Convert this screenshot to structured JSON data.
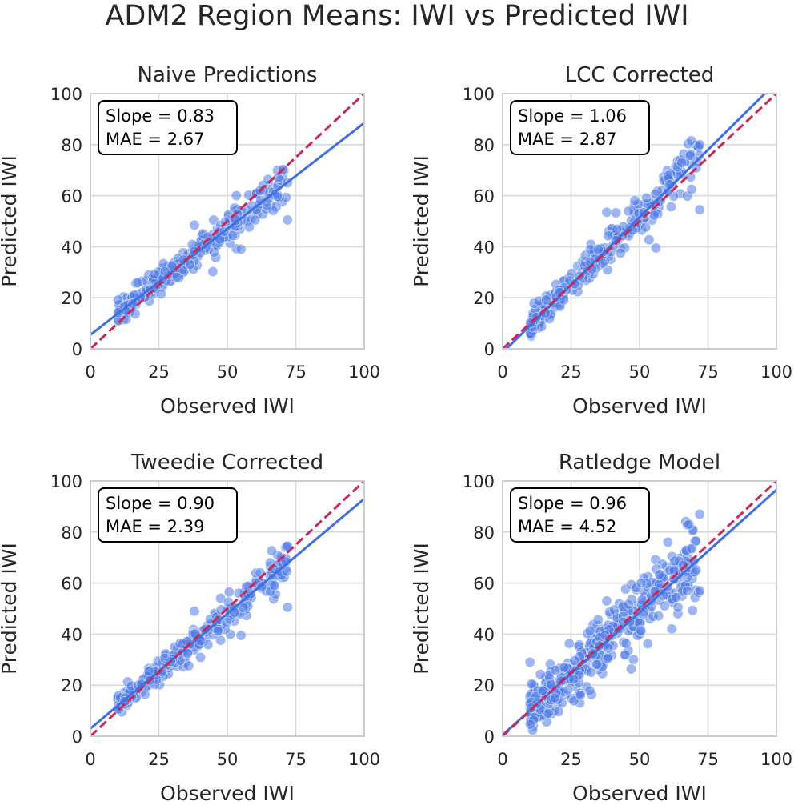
{
  "figure_title": "ADM2 Region Means: IWI vs Predicted IWI",
  "colors": {
    "points": "#4f7be8",
    "fit_line": "#4070e0",
    "identity_line": "#c8285a",
    "grid": "#d9d9d9",
    "frame": "#cccccc"
  },
  "chart_data": [
    {
      "type": "scatter",
      "title": "Naive Predictions",
      "xlabel": "Observed IWI",
      "ylabel": "Predicted IWI",
      "xlim": [
        0,
        100
      ],
      "ylim": [
        0,
        100
      ],
      "xticks": [
        "0",
        "25",
        "50",
        "75",
        "100"
      ],
      "yticks": [
        "0",
        "20",
        "40",
        "60",
        "80",
        "100"
      ],
      "slope_text": "Slope = 0.83",
      "mae_text": "MAE = 2.67",
      "slope": 0.83,
      "intercept": 5.5,
      "noise": 2.6,
      "n_points": 260,
      "seed": 11,
      "outliers": [
        [
          72,
          50.5
        ],
        [
          38,
          48.5
        ],
        [
          55,
          39
        ],
        [
          65,
          59
        ],
        [
          62,
          62
        ]
      ]
    },
    {
      "type": "scatter",
      "title": "LCC Corrected",
      "xlabel": "Observed IWI",
      "ylabel": "Predicted IWI",
      "xlim": [
        0,
        100
      ],
      "ylim": [
        0,
        100
      ],
      "xticks": [
        "0",
        "25",
        "50",
        "75",
        "100"
      ],
      "yticks": [
        "0",
        "20",
        "40",
        "60",
        "80",
        "100"
      ],
      "slope_text": "Slope = 1.06",
      "mae_text": "MAE = 2.87",
      "slope": 1.06,
      "intercept": -1.5,
      "noise": 3.1,
      "n_points": 260,
      "seed": 23,
      "outliers": [
        [
          72,
          54.5
        ],
        [
          72,
          80
        ],
        [
          69,
          62.5
        ],
        [
          38,
          53.5
        ],
        [
          56,
          39.5
        ],
        [
          43,
          37.5
        ]
      ]
    },
    {
      "type": "scatter",
      "title": "Tweedie Corrected",
      "xlabel": "Observed IWI",
      "ylabel": "Predicted IWI",
      "xlim": [
        0,
        100
      ],
      "ylim": [
        0,
        100
      ],
      "xticks": [
        "0",
        "25",
        "50",
        "75",
        "100"
      ],
      "yticks": [
        "0",
        "20",
        "40",
        "60",
        "80",
        "100"
      ],
      "slope_text": "Slope = 0.90",
      "mae_text": "MAE = 2.39",
      "slope": 0.9,
      "intercept": 3.0,
      "noise": 2.5,
      "n_points": 260,
      "seed": 37,
      "outliers": [
        [
          72,
          50.5
        ],
        [
          38,
          49
        ],
        [
          55,
          39.5
        ],
        [
          72,
          74.5
        ],
        [
          62,
          64
        ]
      ]
    },
    {
      "type": "scatter",
      "title": "Ratledge Model",
      "xlabel": "Observed IWI",
      "ylabel": "Predicted IWI",
      "xlim": [
        0,
        100
      ],
      "ylim": [
        0,
        100
      ],
      "xticks": [
        "0",
        "25",
        "50",
        "75",
        "100"
      ],
      "yticks": [
        "0",
        "20",
        "40",
        "60",
        "80",
        "100"
      ],
      "slope_text": "Slope = 0.96",
      "mae_text": "MAE = 4.52",
      "slope": 0.96,
      "intercept": 0.5,
      "noise": 5.2,
      "n_points": 420,
      "seed": 53,
      "outliers": [
        [
          72,
          87
        ],
        [
          68,
          83
        ],
        [
          10,
          29
        ],
        [
          66,
          67
        ],
        [
          72,
          57
        ],
        [
          38,
          53
        ]
      ]
    }
  ]
}
